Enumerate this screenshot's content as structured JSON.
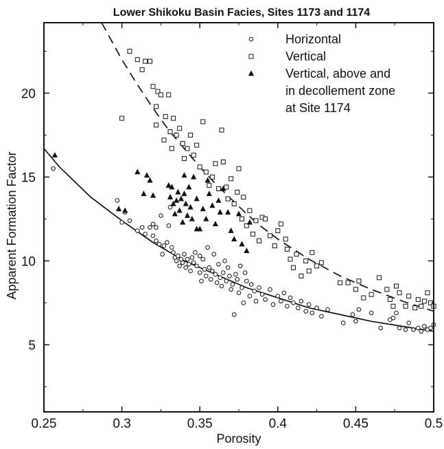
{
  "chart_data": {
    "type": "scatter",
    "title": "Lower Shikoku Basin Facies, Sites 1173 and 1174",
    "xlabel": "Porosity",
    "ylabel": "Apparent  Formation  Factor",
    "xlim": [
      0.25,
      0.5
    ],
    "ylim": [
      1,
      24.2
    ],
    "x_ticks": [
      0.25,
      0.3,
      0.35,
      0.4,
      0.45,
      0.5
    ],
    "x_tick_labels": [
      "0.25",
      "0.3",
      "0.35",
      "0.4",
      "0.45",
      "0.5"
    ],
    "y_ticks": [
      5,
      10,
      15,
      20
    ],
    "y_tick_labels": [
      "5",
      "10",
      "15",
      "20"
    ],
    "grid": false,
    "legend_position": "top-right",
    "legend_lines": [
      [
        "Horizontal"
      ],
      [
        "Vertical"
      ],
      [
        "Vertical, above and",
        "in decollement zone",
        "at Site 1174"
      ]
    ],
    "series": [
      {
        "name": "Horizontal",
        "marker": "open-circle",
        "points": [
          [
            0.256,
            15.5
          ],
          [
            0.297,
            13.6
          ],
          [
            0.3,
            12.3
          ],
          [
            0.302,
            12.9
          ],
          [
            0.305,
            12.4
          ],
          [
            0.31,
            11.8
          ],
          [
            0.313,
            12.0
          ],
          [
            0.315,
            11.6
          ],
          [
            0.318,
            12.0
          ],
          [
            0.32,
            12.2
          ],
          [
            0.32,
            11.5
          ],
          [
            0.322,
            12.0
          ],
          [
            0.322,
            11.2
          ],
          [
            0.324,
            11.0
          ],
          [
            0.325,
            12.7
          ],
          [
            0.326,
            10.4
          ],
          [
            0.327,
            10.9
          ],
          [
            0.329,
            11.1
          ],
          [
            0.33,
            12.1
          ],
          [
            0.331,
            13.2
          ],
          [
            0.332,
            10.8
          ],
          [
            0.333,
            10.5
          ],
          [
            0.334,
            10.2
          ],
          [
            0.335,
            10.0
          ],
          [
            0.336,
            10.3
          ],
          [
            0.337,
            9.7
          ],
          [
            0.338,
            10.1
          ],
          [
            0.339,
            9.9
          ],
          [
            0.34,
            10.4
          ],
          [
            0.341,
            9.6
          ],
          [
            0.342,
            10.1
          ],
          [
            0.343,
            9.8
          ],
          [
            0.344,
            9.4
          ],
          [
            0.345,
            10.2
          ],
          [
            0.346,
            9.9
          ],
          [
            0.347,
            10.5
          ],
          [
            0.348,
            9.7
          ],
          [
            0.35,
            10.3
          ],
          [
            0.35,
            9.3
          ],
          [
            0.351,
            8.8
          ],
          [
            0.352,
            10.1
          ],
          [
            0.353,
            9.5
          ],
          [
            0.354,
            9.1
          ],
          [
            0.355,
            10.8
          ],
          [
            0.356,
            9.6
          ],
          [
            0.357,
            8.9
          ],
          [
            0.358,
            9.4
          ],
          [
            0.359,
            10.4
          ],
          [
            0.36,
            9.2
          ],
          [
            0.361,
            8.7
          ],
          [
            0.362,
            9.8
          ],
          [
            0.363,
            9.0
          ],
          [
            0.364,
            8.5
          ],
          [
            0.365,
            9.3
          ],
          [
            0.366,
            10.0
          ],
          [
            0.367,
            8.8
          ],
          [
            0.368,
            9.6
          ],
          [
            0.369,
            9.1
          ],
          [
            0.37,
            8.3
          ],
          [
            0.371,
            8.6
          ],
          [
            0.372,
            6.8
          ],
          [
            0.373,
            9.2
          ],
          [
            0.374,
            8.9
          ],
          [
            0.375,
            8.1
          ],
          [
            0.376,
            9.7
          ],
          [
            0.377,
            8.4
          ],
          [
            0.378,
            7.5
          ],
          [
            0.379,
            9.3
          ],
          [
            0.38,
            8.8
          ],
          [
            0.382,
            7.9
          ],
          [
            0.383,
            8.6
          ],
          [
            0.385,
            8.2
          ],
          [
            0.386,
            7.6
          ],
          [
            0.388,
            8.4
          ],
          [
            0.39,
            8.0
          ],
          [
            0.392,
            7.7
          ],
          [
            0.395,
            8.3
          ],
          [
            0.397,
            7.4
          ],
          [
            0.4,
            7.9
          ],
          [
            0.402,
            7.6
          ],
          [
            0.404,
            8.1
          ],
          [
            0.406,
            7.3
          ],
          [
            0.408,
            7.8
          ],
          [
            0.41,
            7.5
          ],
          [
            0.413,
            7.2
          ],
          [
            0.415,
            7.6
          ],
          [
            0.418,
            7.0
          ],
          [
            0.42,
            7.4
          ],
          [
            0.422,
            6.9
          ],
          [
            0.425,
            7.2
          ],
          [
            0.428,
            6.7
          ],
          [
            0.432,
            7.1
          ],
          [
            0.442,
            6.3
          ],
          [
            0.448,
            6.8
          ],
          [
            0.45,
            6.4
          ],
          [
            0.452,
            7.1
          ],
          [
            0.46,
            6.9
          ],
          [
            0.466,
            6.0
          ],
          [
            0.472,
            6.5
          ],
          [
            0.474,
            6.6
          ],
          [
            0.476,
            6.9
          ],
          [
            0.478,
            6.0
          ],
          [
            0.482,
            5.9
          ],
          [
            0.484,
            6.3
          ],
          [
            0.487,
            5.9
          ],
          [
            0.49,
            6.0
          ],
          [
            0.492,
            5.8
          ],
          [
            0.494,
            6.1
          ],
          [
            0.496,
            5.9
          ],
          [
            0.498,
            6.0
          ],
          [
            0.5,
            6.2
          ]
        ]
      },
      {
        "name": "Vertical",
        "marker": "open-square",
        "points": [
          [
            0.3,
            18.5
          ],
          [
            0.305,
            22.5
          ],
          [
            0.31,
            22.0
          ],
          [
            0.313,
            21.4
          ],
          [
            0.315,
            21.9
          ],
          [
            0.318,
            21.9
          ],
          [
            0.32,
            20.4
          ],
          [
            0.322,
            19.2
          ],
          [
            0.322,
            18.1
          ],
          [
            0.323,
            20.1
          ],
          [
            0.325,
            19.9
          ],
          [
            0.327,
            17.2
          ],
          [
            0.328,
            18.6
          ],
          [
            0.33,
            19.9
          ],
          [
            0.331,
            17.7
          ],
          [
            0.332,
            16.7
          ],
          [
            0.333,
            18.5
          ],
          [
            0.335,
            17.5
          ],
          [
            0.337,
            17.9
          ],
          [
            0.339,
            17.0
          ],
          [
            0.34,
            16.1
          ],
          [
            0.342,
            16.7
          ],
          [
            0.344,
            17.5
          ],
          [
            0.346,
            16.3
          ],
          [
            0.348,
            16.9
          ],
          [
            0.35,
            15.6
          ],
          [
            0.352,
            18.3
          ],
          [
            0.354,
            15.3
          ],
          [
            0.356,
            14.5
          ],
          [
            0.358,
            15.0
          ],
          [
            0.36,
            15.8
          ],
          [
            0.362,
            14.3
          ],
          [
            0.364,
            17.8
          ],
          [
            0.365,
            15.9
          ],
          [
            0.367,
            14.4
          ],
          [
            0.368,
            13.7
          ],
          [
            0.37,
            14.9
          ],
          [
            0.372,
            13.4
          ],
          [
            0.374,
            14.1
          ],
          [
            0.375,
            15.5
          ],
          [
            0.377,
            12.5
          ],
          [
            0.378,
            13.8
          ],
          [
            0.38,
            12.1
          ],
          [
            0.382,
            13.0
          ],
          [
            0.384,
            11.6
          ],
          [
            0.386,
            12.4
          ],
          [
            0.388,
            11.2
          ],
          [
            0.39,
            12.6
          ],
          [
            0.392,
            12.5
          ],
          [
            0.395,
            11.5
          ],
          [
            0.398,
            10.9
          ],
          [
            0.4,
            11.8
          ],
          [
            0.402,
            12.2
          ],
          [
            0.405,
            11.3
          ],
          [
            0.406,
            10.7
          ],
          [
            0.408,
            10.1
          ],
          [
            0.41,
            9.6
          ],
          [
            0.412,
            10.4
          ],
          [
            0.415,
            9.1
          ],
          [
            0.418,
            10.0
          ],
          [
            0.42,
            9.4
          ],
          [
            0.422,
            10.5
          ],
          [
            0.425,
            9.7
          ],
          [
            0.428,
            9.9
          ],
          [
            0.44,
            8.7
          ],
          [
            0.445,
            8.7
          ],
          [
            0.45,
            8.3
          ],
          [
            0.452,
            8.8
          ],
          [
            0.455,
            7.8
          ],
          [
            0.46,
            8.0
          ],
          [
            0.465,
            9.0
          ],
          [
            0.47,
            8.3
          ],
          [
            0.472,
            7.7
          ],
          [
            0.474,
            7.3
          ],
          [
            0.476,
            8.5
          ],
          [
            0.478,
            8.1
          ],
          [
            0.482,
            7.3
          ],
          [
            0.484,
            7.9
          ],
          [
            0.488,
            7.2
          ],
          [
            0.49,
            7.7
          ],
          [
            0.492,
            7.3
          ],
          [
            0.494,
            7.6
          ],
          [
            0.496,
            8.1
          ],
          [
            0.498,
            7.5
          ],
          [
            0.5,
            7.3
          ]
        ]
      },
      {
        "name": "Vertical, above and in decollement zone at Site 1174",
        "marker": "filled-triangle",
        "points": [
          [
            0.257,
            16.3
          ],
          [
            0.298,
            13.1
          ],
          [
            0.302,
            13.0
          ],
          [
            0.31,
            15.3
          ],
          [
            0.314,
            14.0
          ],
          [
            0.316,
            15.1
          ],
          [
            0.318,
            14.8
          ],
          [
            0.32,
            13.9
          ],
          [
            0.33,
            14.5
          ],
          [
            0.331,
            13.8
          ],
          [
            0.332,
            14.4
          ],
          [
            0.333,
            13.4
          ],
          [
            0.334,
            12.8
          ],
          [
            0.335,
            13.6
          ],
          [
            0.336,
            14.1
          ],
          [
            0.337,
            13.0
          ],
          [
            0.338,
            13.7
          ],
          [
            0.339,
            12.3
          ],
          [
            0.34,
            14.0
          ],
          [
            0.341,
            13.4
          ],
          [
            0.342,
            12.7
          ],
          [
            0.343,
            14.4
          ],
          [
            0.344,
            13.2
          ],
          [
            0.345,
            12.5
          ],
          [
            0.346,
            15.0
          ],
          [
            0.348,
            13.7
          ],
          [
            0.35,
            11.9
          ],
          [
            0.352,
            13.1
          ],
          [
            0.354,
            12.5
          ],
          [
            0.356,
            14.0
          ],
          [
            0.358,
            13.3
          ],
          [
            0.36,
            12.2
          ],
          [
            0.362,
            13.6
          ],
          [
            0.365,
            14.3
          ],
          [
            0.368,
            12.9
          ],
          [
            0.37,
            11.8
          ],
          [
            0.372,
            11.3
          ],
          [
            0.375,
            12.8
          ],
          [
            0.377,
            11.0
          ],
          [
            0.38,
            10.6
          ],
          [
            0.382,
            12.3
          ],
          [
            0.34,
            15.1
          ],
          [
            0.355,
            14.8
          ],
          [
            0.363,
            12.9
          ],
          [
            0.348,
            11.9
          ]
        ]
      }
    ],
    "fit_curves": [
      {
        "series": "Horizontal",
        "style": "solid",
        "points": [
          [
            0.25,
            16.7
          ],
          [
            0.26,
            15.6
          ],
          [
            0.28,
            13.8
          ],
          [
            0.3,
            12.4
          ],
          [
            0.32,
            11.1
          ],
          [
            0.34,
            10.0
          ],
          [
            0.36,
            9.2
          ],
          [
            0.38,
            8.4
          ],
          [
            0.4,
            7.8
          ],
          [
            0.42,
            7.2
          ],
          [
            0.44,
            6.8
          ],
          [
            0.46,
            6.4
          ],
          [
            0.48,
            6.1
          ],
          [
            0.5,
            5.8
          ]
        ]
      },
      {
        "series": "Vertical",
        "style": "dashed",
        "points": [
          [
            0.287,
            24.2
          ],
          [
            0.3,
            22.0
          ],
          [
            0.31,
            20.5
          ],
          [
            0.32,
            19.1
          ],
          [
            0.33,
            17.8
          ],
          [
            0.34,
            16.7
          ],
          [
            0.35,
            15.6
          ],
          [
            0.36,
            14.6
          ],
          [
            0.37,
            13.7
          ],
          [
            0.38,
            12.8
          ],
          [
            0.39,
            12.0
          ],
          [
            0.4,
            11.3
          ],
          [
            0.42,
            10.1
          ],
          [
            0.44,
            9.1
          ],
          [
            0.46,
            8.3
          ],
          [
            0.48,
            7.6
          ],
          [
            0.5,
            7.0
          ]
        ]
      }
    ]
  }
}
